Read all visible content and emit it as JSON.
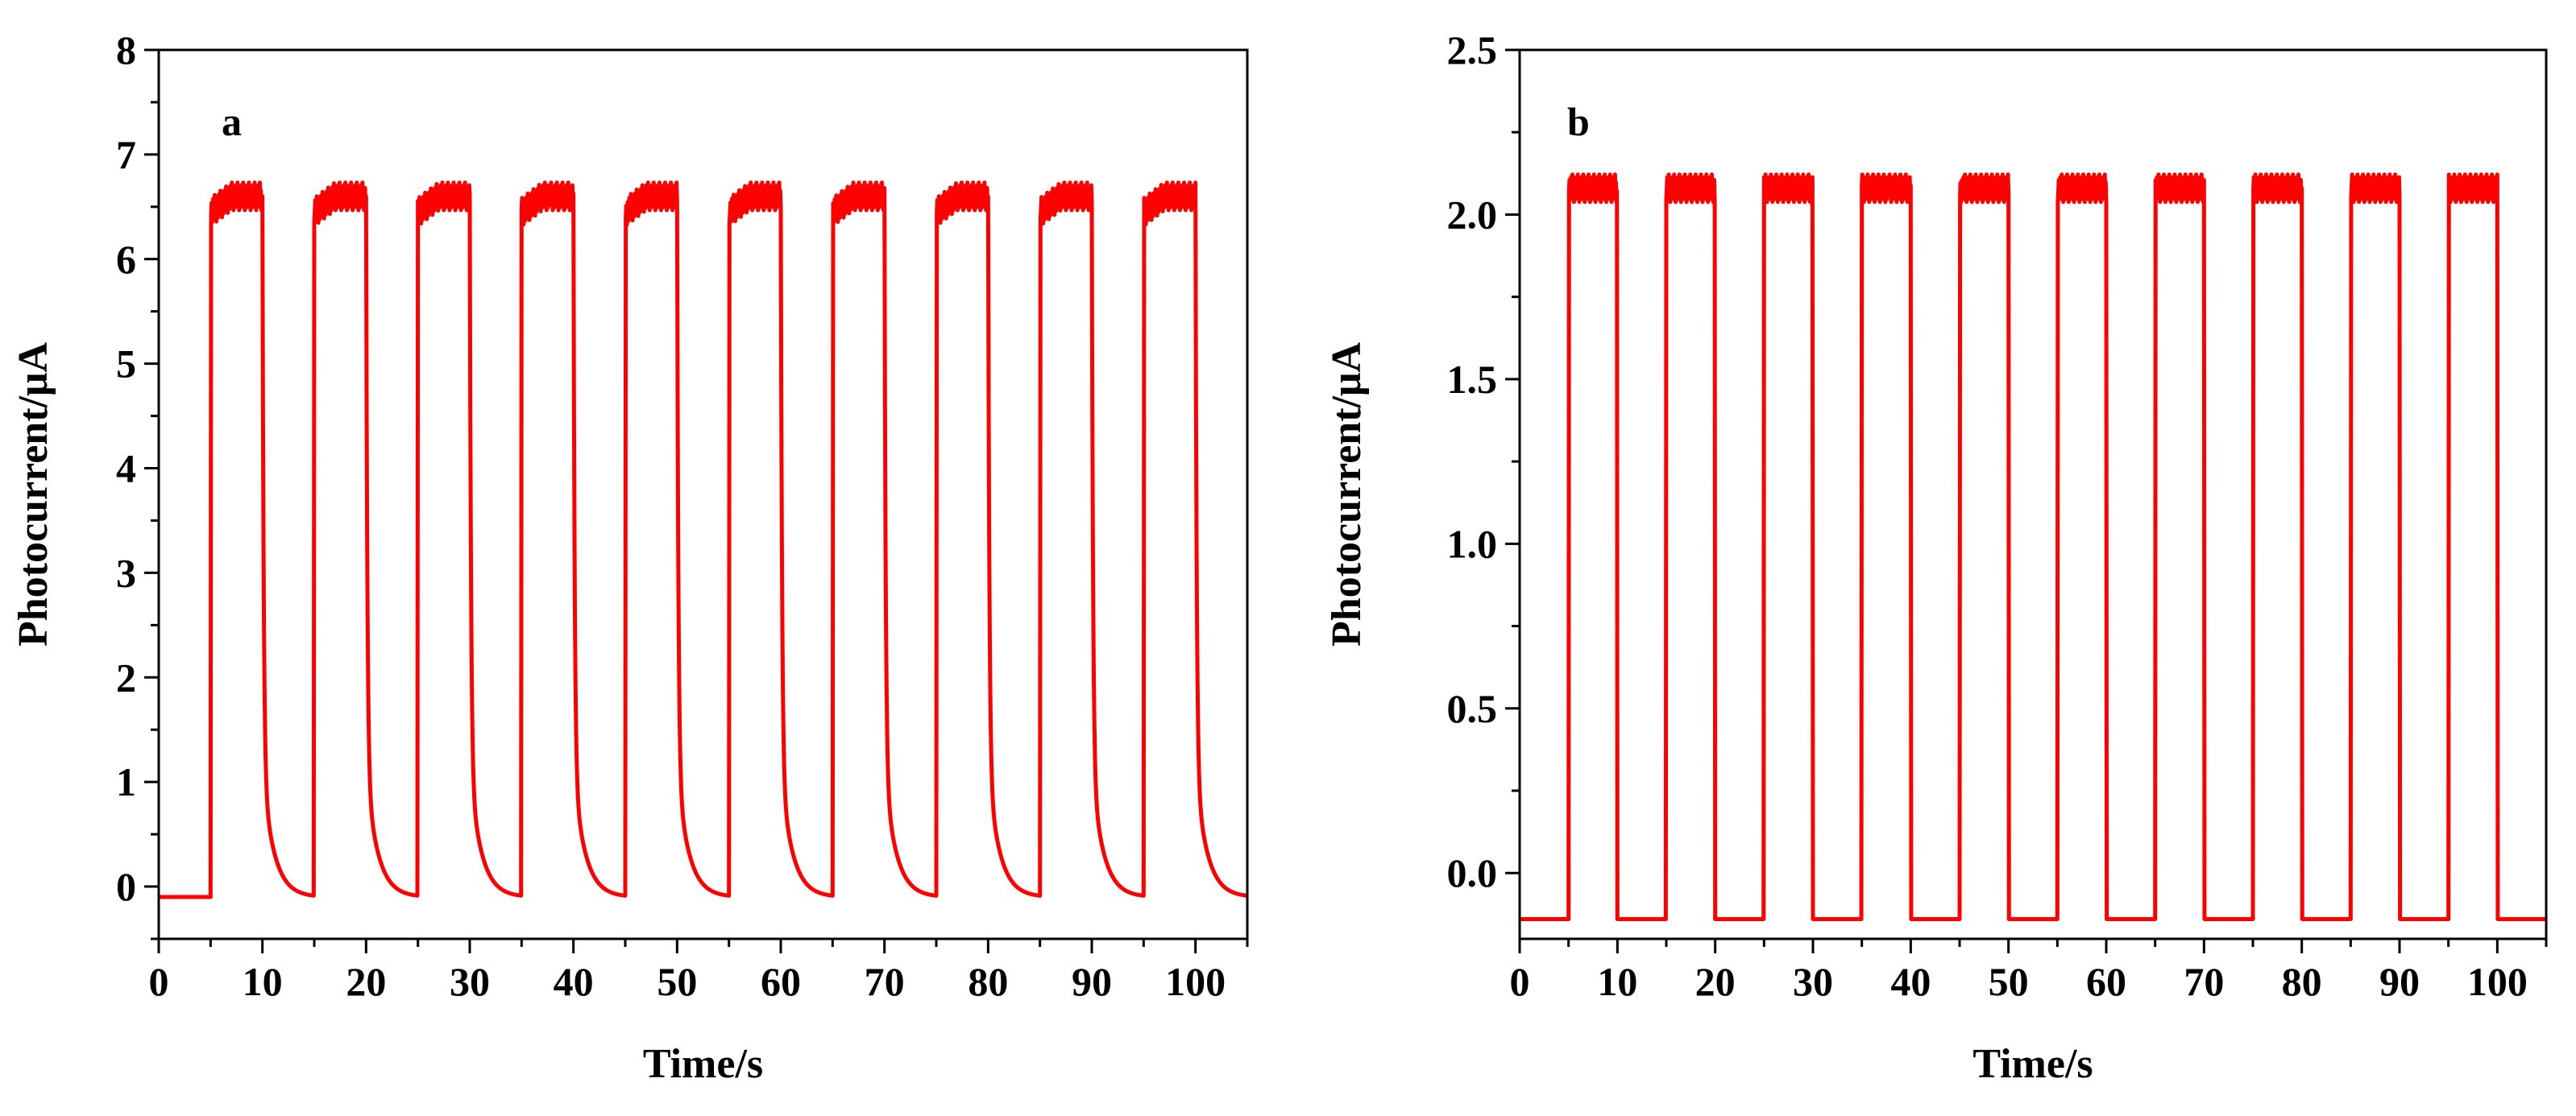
{
  "chart_data": [
    {
      "type": "line",
      "panel_label": "a",
      "xlabel": "Time/s",
      "ylabel": "Photocurrent/μA",
      "xlim": [
        0,
        105
      ],
      "ylim": [
        -0.5,
        8
      ],
      "xticks": [
        0,
        10,
        20,
        30,
        40,
        50,
        60,
        70,
        80,
        90,
        100
      ],
      "xtick_labels": [
        "0",
        "10",
        "20",
        "30",
        "40",
        "50",
        "60",
        "70",
        "80",
        "90",
        "100"
      ],
      "yticks": [
        0,
        1,
        2,
        3,
        4,
        5,
        6,
        7,
        8
      ],
      "ytick_labels": [
        "0",
        "1",
        "2",
        "3",
        "4",
        "5",
        "6",
        "7",
        "8"
      ],
      "grid": false,
      "color": "#ff0000",
      "series": [
        {
          "name": "photocurrent",
          "description": "on/off light response, 10 cycles, 5 s on / 5 s off",
          "off_current": -0.1,
          "on_current_start": 6.45,
          "on_current_end": 6.6,
          "on_times": [
            5,
            15,
            25,
            35,
            45,
            55,
            65,
            75,
            85,
            95
          ],
          "off_times": [
            10,
            20,
            30,
            40,
            50,
            60,
            70,
            80,
            90,
            100
          ],
          "decay": "slow exponential decay after light off"
        }
      ]
    },
    {
      "type": "line",
      "panel_label": "b",
      "xlabel": "Time/s",
      "ylabel": "Photocurrent/μA",
      "xlim": [
        0,
        105
      ],
      "ylim": [
        -0.2,
        2.5
      ],
      "xticks": [
        0,
        10,
        20,
        30,
        40,
        50,
        60,
        70,
        80,
        90,
        100
      ],
      "xtick_labels": [
        "0",
        "10",
        "20",
        "30",
        "40",
        "50",
        "60",
        "70",
        "80",
        "90",
        "100"
      ],
      "yticks": [
        0,
        0.5,
        1,
        1.5,
        2,
        2.5
      ],
      "ytick_labels": [
        "0.0",
        "0.5",
        "1.0",
        "1.5",
        "2.0",
        "2.5"
      ],
      "grid": false,
      "color": "#ff0000",
      "series": [
        {
          "name": "photocurrent",
          "description": "on/off light response, 10 cycles, 5 s on / 5 s off",
          "off_current": -0.14,
          "on_current_start": 2.08,
          "on_current_end": 2.08,
          "on_times": [
            5,
            15,
            25,
            35,
            45,
            55,
            65,
            75,
            85,
            95
          ],
          "off_times": [
            10,
            20,
            30,
            40,
            50,
            60,
            70,
            80,
            90,
            100
          ],
          "decay": "sharp square response"
        }
      ]
    }
  ]
}
